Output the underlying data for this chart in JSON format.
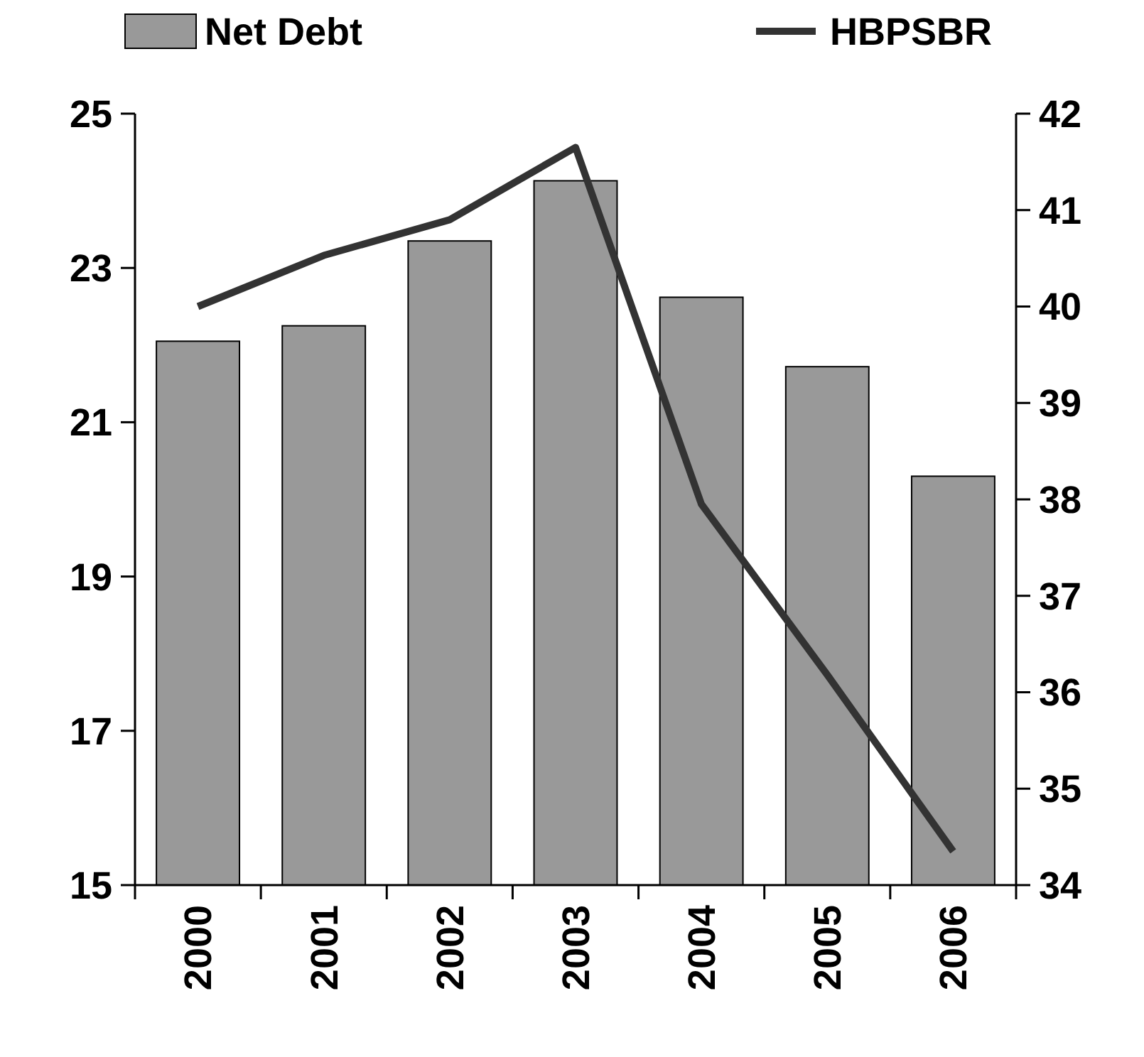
{
  "chart_data": {
    "type": "bar",
    "categories": [
      "2000",
      "2001",
      "2002",
      "2003",
      "2004",
      "2005",
      "2006"
    ],
    "series": [
      {
        "name": "Net Debt",
        "color": "#999999",
        "values": [
          22.05,
          22.25,
          23.35,
          24.13,
          22.62,
          21.72,
          20.3
        ]
      },
      {
        "name": "HBPSBR",
        "type": "line",
        "axis": "y2",
        "color": "#333333",
        "values": [
          40.0,
          40.53,
          40.9,
          41.65,
          37.95,
          36.18,
          34.35
        ]
      }
    ],
    "ylim": [
      15,
      25
    ],
    "yticks": [
      15,
      17,
      19,
      21,
      23,
      25
    ],
    "y2lim": [
      34,
      42
    ],
    "y2ticks": [
      34,
      35,
      36,
      37,
      38,
      39,
      40,
      41,
      42
    ],
    "grid": false,
    "legend": "top",
    "marker": "none",
    "line_style": "solid"
  }
}
